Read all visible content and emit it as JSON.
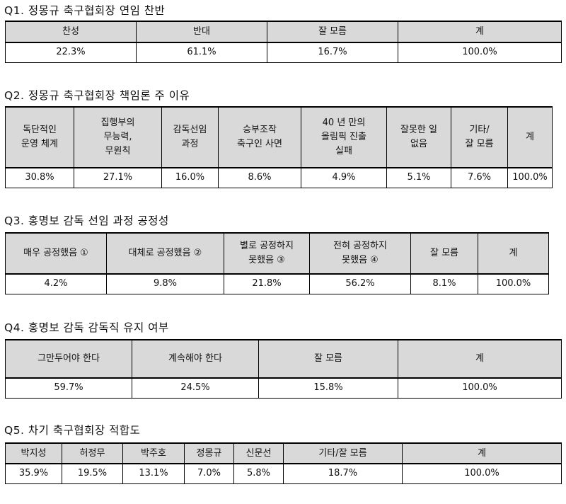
{
  "q1": {
    "title": "Q1. 정몽규 축구협회장 연임 찬반",
    "headers": [
      "찬성",
      "반대",
      "잘 모름",
      "계"
    ],
    "values": [
      "22.3%",
      "61.1%",
      "16.7%",
      "100.0%"
    ]
  },
  "q2": {
    "title": "Q2. 정몽규 축구협회장 책임론 주 이유",
    "headers": [
      "독단적인\n운영 체계",
      "집행부의\n무능력,\n무원칙",
      "감독선임\n과정",
      "승부조작\n축구인 사면",
      "40 년 만의\n올림픽 진출\n실패",
      "잘못한 일\n없음",
      "기타/\n잘 모름",
      "계"
    ],
    "values": [
      "30.8%",
      "27.1%",
      "16.0%",
      "8.6%",
      "4.9%",
      "5.1%",
      "7.6%",
      "100.0%"
    ]
  },
  "q3": {
    "title": "Q3. 홍명보 감독 선임 과정 공정성",
    "headers": [
      "매우 공정했음 ①",
      "대체로 공정했음 ②",
      "별로 공정하지\n못했음 ③",
      "전혀 공정하지\n못했음 ④",
      "잘 모름",
      "계"
    ],
    "values": [
      "4.2%",
      "9.8%",
      "21.8%",
      "56.2%",
      "8.1%",
      "100.0%"
    ]
  },
  "q4": {
    "title": "Q4. 홍명보 감독 감독직 유지 여부",
    "headers": [
      "그만두어야 한다",
      "계속해야 한다",
      "잘 모름",
      "계"
    ],
    "values": [
      "59.7%",
      "24.5%",
      "15.8%",
      "100.0%"
    ]
  },
  "q5": {
    "title": "Q5. 차기 축구협회장 적합도",
    "headers": [
      "박지성",
      "허정무",
      "박주호",
      "정몽규",
      "신문선",
      "기타/잘 모름",
      "계"
    ],
    "values": [
      "35.9%",
      "19.5%",
      "13.1%",
      "7.0%",
      "5.8%",
      "18.7%",
      "100.0%"
    ]
  }
}
